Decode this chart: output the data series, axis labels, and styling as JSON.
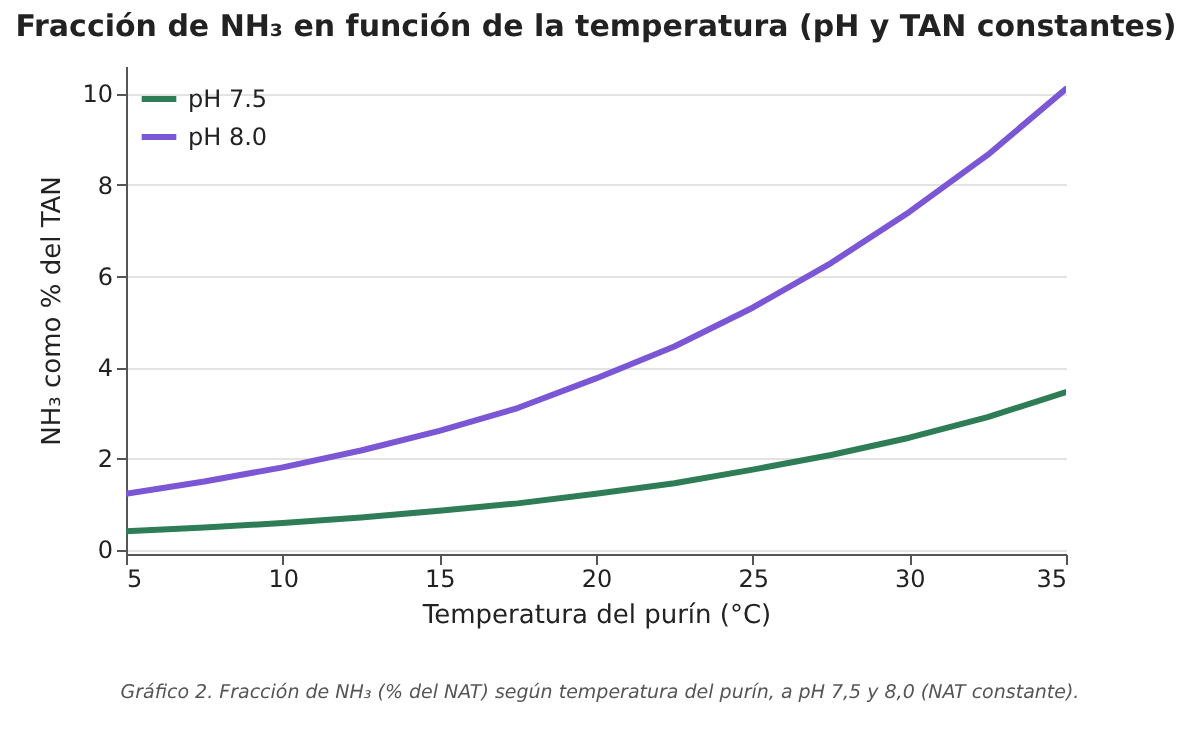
{
  "chart_data": {
    "type": "line",
    "title": "Fracción de NH₃ en función de la temperatura (pH y TAN constantes)",
    "xlabel": "Temperatura del purín (°C)",
    "ylabel": "NH₃ como % del TAN",
    "x": [
      5,
      7.5,
      10,
      12.5,
      15,
      17.5,
      20,
      22.5,
      25,
      27.5,
      30,
      32.5,
      35
    ],
    "series": [
      {
        "name": "pH 7.5",
        "color": "#2e7d57",
        "values": [
          0.4,
          0.48,
          0.58,
          0.7,
          0.85,
          1.01,
          1.22,
          1.45,
          1.75,
          2.07,
          2.45,
          2.9,
          3.45
        ]
      },
      {
        "name": "pH 8.0",
        "color": "#7b57d6",
        "values": [
          1.22,
          1.49,
          1.8,
          2.17,
          2.6,
          3.1,
          3.75,
          4.45,
          5.3,
          6.28,
          7.4,
          8.65,
          10.1
        ]
      }
    ],
    "xlim": [
      5,
      35
    ],
    "xticks": [
      5,
      10,
      15,
      20,
      25,
      30,
      35
    ],
    "ylim": [
      -0.1,
      10.6
    ],
    "yticks": [
      0,
      2,
      4,
      6,
      8,
      10
    ],
    "grid": "y",
    "legend": "top left",
    "marker": "none",
    "line_style": "solid",
    "annotations": [
      "Gráfico 2. Fracción de NH₃ (% del NAT) según temperatura del purín, a pH 7,5 y 8,0 (NAT constante)."
    ]
  }
}
